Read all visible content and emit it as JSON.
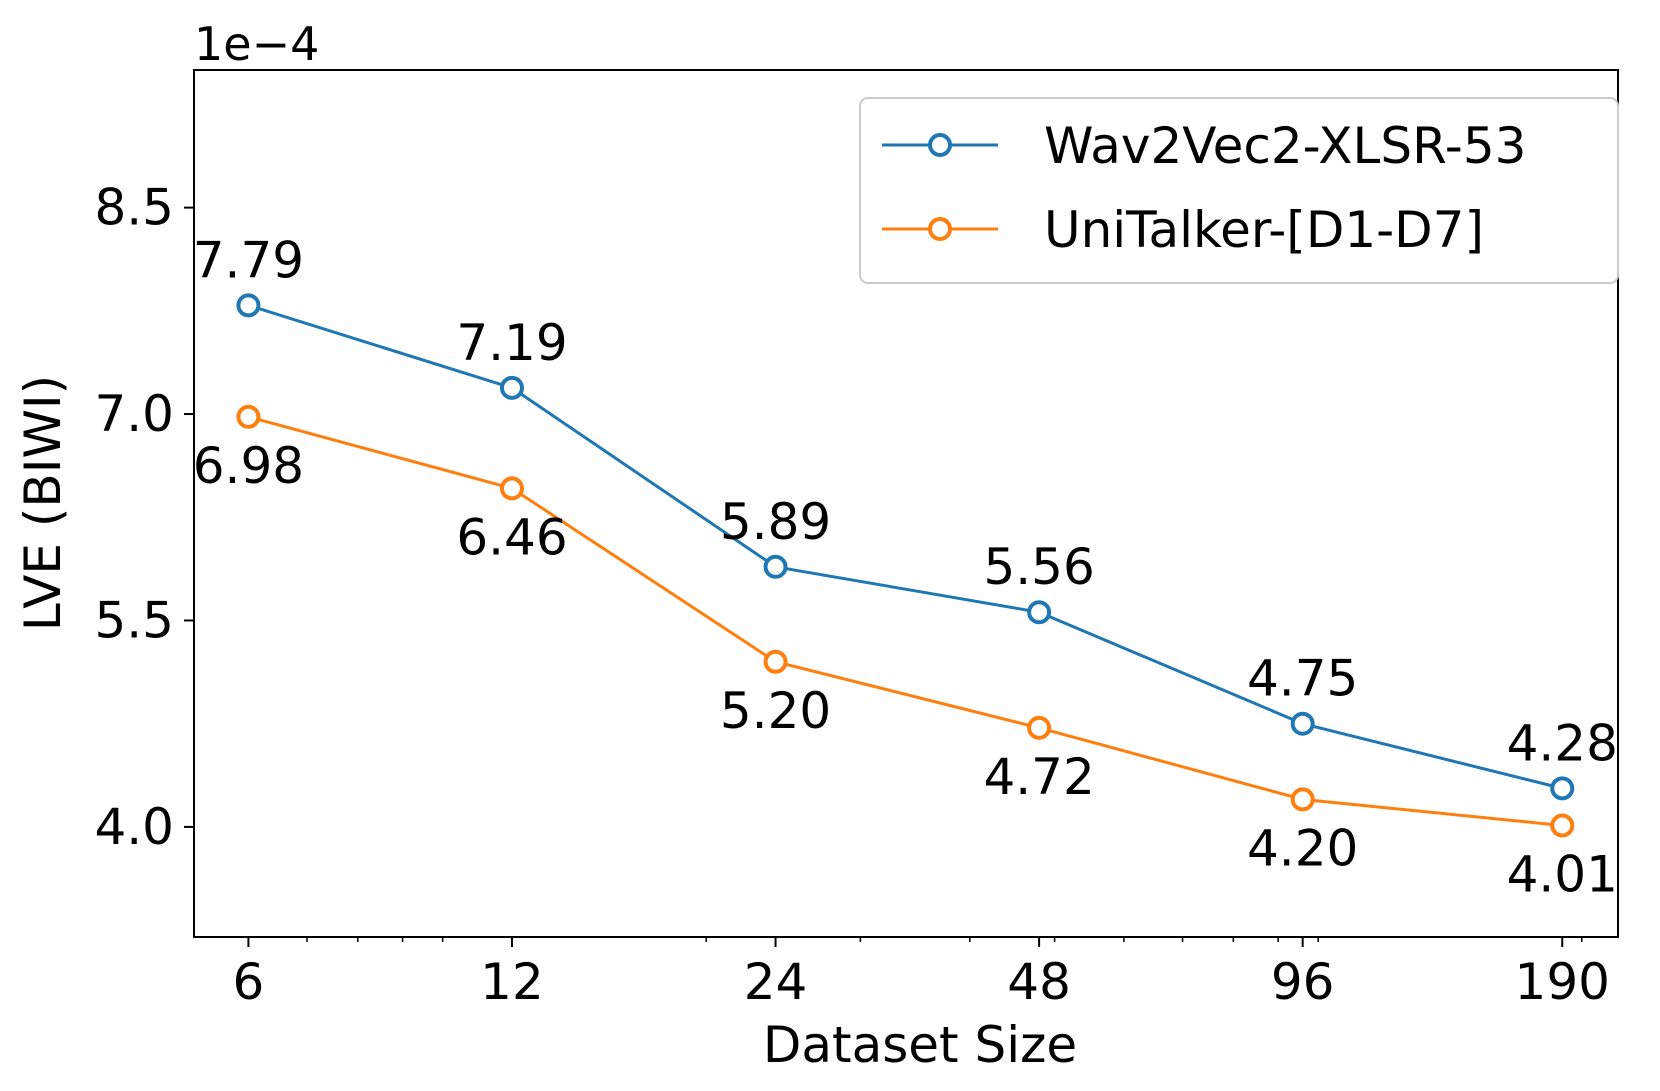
{
  "chart_data": {
    "type": "line",
    "title": "",
    "xlabel": "Dataset Size",
    "ylabel": "LVE (BIWI)",
    "y_scale_label": "1e−4",
    "x_scale": "log2",
    "xlim": [
      5.2,
      220
    ],
    "ylim": [
      3.2,
      9.5
    ],
    "categories": [
      "6",
      "12",
      "24",
      "48",
      "96",
      "190"
    ],
    "x": [
      6,
      12,
      24,
      48,
      96,
      190
    ],
    "y_ticks": [
      4.0,
      5.5,
      7.0,
      8.5
    ],
    "y_tick_labels": [
      "4.0",
      "5.5",
      "7.0",
      "8.5"
    ],
    "series": [
      {
        "name": "Wav2Vec2-XLSR-53",
        "color": "#1f77b4",
        "values": [
          7.79,
          7.19,
          5.89,
          5.56,
          4.75,
          4.28
        ],
        "labels": [
          "7.79",
          "7.19",
          "5.89",
          "5.56",
          "4.75",
          "4.28"
        ],
        "label_position": "above"
      },
      {
        "name": "UniTalker-[D1-D7]",
        "color": "#ff7f0e",
        "values": [
          6.98,
          6.46,
          5.2,
          4.72,
          4.2,
          4.01
        ],
        "labels": [
          "6.98",
          "6.46",
          "5.20",
          "4.72",
          "4.20",
          "4.01"
        ],
        "label_position": "below"
      }
    ],
    "legend_position": "top-right",
    "grid": false
  }
}
